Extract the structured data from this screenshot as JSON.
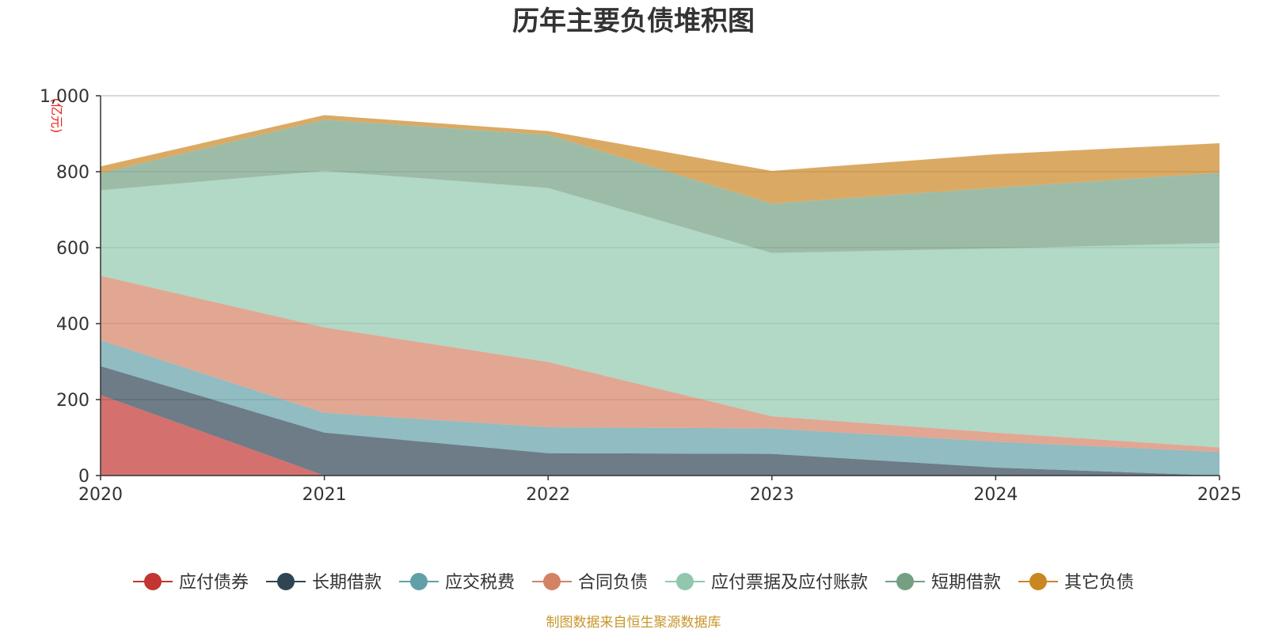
{
  "chart_data": {
    "type": "area",
    "stacked": true,
    "title": "历年主要负债堆积图",
    "unit_label": "(亿元)",
    "source": "制图数据来自恒生聚源数据库",
    "categories": [
      "2020",
      "2021",
      "2022",
      "2023",
      "2024",
      "2025"
    ],
    "ylim": [
      0,
      1000
    ],
    "yticks": [
      0,
      200,
      400,
      600,
      800,
      1000
    ],
    "ytick_labels": [
      "0",
      "200",
      "400",
      "600",
      "800",
      "1,000"
    ],
    "grid": true,
    "legend_position": "bottom",
    "series": [
      {
        "name": "应付债券",
        "color": "#c23531",
        "values": [
          212,
          0,
          0,
          0,
          0,
          0
        ]
      },
      {
        "name": "长期借款",
        "color": "#2f4554",
        "values": [
          76,
          113,
          59,
          57,
          21,
          0
        ]
      },
      {
        "name": "应交税费",
        "color": "#61a0a8",
        "values": [
          68,
          52,
          68,
          67,
          68,
          62
        ]
      },
      {
        "name": "合同负债",
        "color": "#d48265",
        "values": [
          170,
          225,
          172,
          32,
          24,
          12
        ]
      },
      {
        "name": "应付票据及应付账款",
        "color": "#91c7ae",
        "values": [
          225,
          412,
          458,
          430,
          485,
          538
        ]
      },
      {
        "name": "短期借款",
        "color": "#749f83",
        "values": [
          45,
          135,
          140,
          130,
          160,
          185
        ]
      },
      {
        "name": "其它负债",
        "color": "#ca8622",
        "values": [
          18,
          12,
          10,
          86,
          88,
          78
        ]
      }
    ]
  }
}
